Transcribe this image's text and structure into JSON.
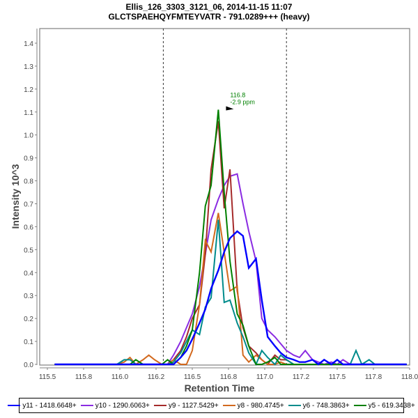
{
  "chart_data": {
    "type": "line",
    "title": "Ellis_126_3303_3121_06, 2014-11-15 11:07",
    "subtitle": "GLCTSPAEHQYFMTEYVATR - 791.0289+++ (heavy)",
    "xlabel": "Retention Time",
    "ylabel": "Intensity 10^3",
    "xlim": [
      115.45,
      118.0
    ],
    "ylim": [
      0,
      1.46
    ],
    "xticks": [
      115.5,
      115.75,
      116.0,
      116.25,
      116.5,
      116.75,
      117.0,
      117.25,
      117.5,
      117.75,
      118.0
    ],
    "xtick_labels": [
      "115.5",
      "115.8",
      "116.0",
      "116.2",
      "116.5",
      "116.8",
      "117.0",
      "117.2",
      "117.5",
      "117.8",
      "118.0"
    ],
    "yticks": [
      0.0,
      0.1,
      0.2,
      0.3,
      0.4,
      0.5,
      0.6,
      0.7,
      0.8,
      0.9,
      1.0,
      1.1,
      1.2,
      1.3,
      1.4
    ],
    "ytick_labels": [
      "0.0",
      "0.1",
      "0.2",
      "0.3",
      "0.4",
      "0.5",
      "0.6",
      "0.7",
      "0.8",
      "0.9",
      "1.0",
      "1.1",
      "1.2",
      "1.3",
      "1.4"
    ],
    "grid": false,
    "legend_position": "bottom",
    "boundaries": [
      116.3,
      117.15
    ],
    "annotation": {
      "x": 116.8,
      "y": 1.11,
      "lines": [
        "116.8",
        "-2.9 ppm"
      ],
      "color": "#008000"
    },
    "x": [
      115.55,
      115.59,
      115.64,
      115.68,
      115.72,
      115.77,
      115.81,
      115.85,
      115.9,
      115.94,
      115.98,
      116.03,
      116.07,
      116.11,
      116.16,
      116.2,
      116.24,
      116.29,
      116.33,
      116.37,
      116.42,
      116.46,
      116.5,
      116.55,
      116.59,
      116.63,
      116.68,
      116.72,
      116.76,
      116.81,
      116.85,
      116.89,
      116.94,
      116.98,
      117.02,
      117.07,
      117.11,
      117.15,
      117.2,
      117.24,
      117.28,
      117.33,
      117.37,
      117.41,
      117.46,
      117.5,
      117.54,
      117.59,
      117.63,
      117.67,
      117.72,
      117.76,
      117.8,
      117.85,
      117.89,
      117.93,
      117.98
    ],
    "series": [
      {
        "name": "y11 - 1418.6648+",
        "color": "#0000ff",
        "values": [
          0,
          0,
          0,
          0,
          0,
          0,
          0,
          0,
          0,
          0,
          0,
          0,
          0,
          0,
          0,
          0,
          0,
          0,
          0.0,
          0.0,
          0.03,
          0.06,
          0.11,
          0.18,
          0.24,
          0.33,
          0.41,
          0.49,
          0.55,
          0.58,
          0.56,
          0.42,
          0.46,
          0.28,
          0.12,
          0.08,
          0.05,
          0.03,
          0.02,
          0.01,
          0.01,
          0.02,
          0.0,
          0.02,
          0.0,
          0.02,
          0.0,
          0.0,
          0.0,
          0.0,
          0,
          0,
          0,
          0,
          0,
          0,
          0
        ]
      },
      {
        "name": "y10 - 1290.6063+",
        "color": "#8a2be2",
        "values": [
          0,
          0,
          0,
          0,
          0,
          0,
          0,
          0,
          0,
          0,
          0,
          0,
          0,
          0,
          0,
          0,
          0,
          0,
          0.0,
          0.04,
          0.1,
          0.16,
          0.22,
          0.34,
          0.48,
          0.63,
          0.72,
          0.78,
          0.82,
          0.83,
          0.7,
          0.58,
          0.45,
          0.2,
          0.15,
          0.12,
          0.09,
          0.06,
          0.04,
          0.03,
          0.06,
          0.02,
          0.01,
          0.0,
          0.01,
          0.0,
          0.02,
          0.0,
          0,
          0,
          0,
          0,
          0,
          0,
          0,
          0,
          0
        ]
      },
      {
        "name": "y9 - 1127.5429+",
        "color": "#a52a2a",
        "values": [
          0,
          0,
          0,
          0,
          0,
          0,
          0,
          0,
          0,
          0,
          0,
          0,
          0,
          0,
          0,
          0,
          0,
          0,
          0.0,
          0.02,
          0.06,
          0.12,
          0.2,
          0.26,
          0.48,
          0.85,
          1.06,
          0.68,
          0.85,
          0.32,
          0.16,
          0.08,
          0.05,
          0.02,
          0.0,
          0.04,
          0.02,
          0.02,
          0.0,
          0.0,
          0.0,
          0.0,
          0,
          0,
          0,
          0,
          0,
          0,
          0,
          0,
          0,
          0,
          0,
          0,
          0,
          0,
          0
        ]
      },
      {
        "name": "y8 - 980.4745+",
        "color": "#d2691e",
        "values": [
          0,
          0,
          0,
          0,
          0,
          0,
          0,
          0,
          0,
          0,
          0,
          0.01,
          0.03,
          0.0,
          0.02,
          0.04,
          0.02,
          0.0,
          0.0,
          0.02,
          0.0,
          0.0,
          0.06,
          0.26,
          0.54,
          0.49,
          0.66,
          0.49,
          0.32,
          0.34,
          0.04,
          0.01,
          0.04,
          0.02,
          0.0,
          0.0,
          0.01,
          0.0,
          0.0,
          0.0,
          0,
          0,
          0,
          0,
          0,
          0,
          0,
          0,
          0,
          0,
          0,
          0,
          0,
          0,
          0,
          0,
          0
        ]
      },
      {
        "name": "y6 - 748.3863+",
        "color": "#008b8b",
        "values": [
          0,
          0,
          0,
          0,
          0,
          0,
          0,
          0,
          0,
          0,
          0,
          0.02,
          0.02,
          0.0,
          0.0,
          0.0,
          0.0,
          0.0,
          0.0,
          0.01,
          0.05,
          0.1,
          0.15,
          0.13,
          0.25,
          0.29,
          0.63,
          0.27,
          0.28,
          0.18,
          0.12,
          0.05,
          0.0,
          0.06,
          0.03,
          0.0,
          0.04,
          0.02,
          0.0,
          0.0,
          0.0,
          0.0,
          0.0,
          0.0,
          0.0,
          0.0,
          0.0,
          0.0,
          0.06,
          0.0,
          0.02,
          0.0,
          0,
          0,
          0,
          0,
          0
        ]
      },
      {
        "name": "y5 - 619.3438+",
        "color": "#008000",
        "values": [
          0,
          0,
          0,
          0,
          0,
          0,
          0,
          0,
          0,
          0,
          0,
          0.0,
          0.0,
          0.02,
          0.0,
          0.0,
          0.0,
          0.0,
          0.02,
          0.0,
          0.03,
          0.08,
          0.15,
          0.4,
          0.69,
          0.78,
          1.11,
          0.75,
          0.45,
          0.22,
          0.17,
          0.08,
          0.0,
          0.0,
          0.01,
          0.03,
          0.0,
          0.0,
          0.0,
          0.0,
          0.0,
          0,
          0,
          0,
          0,
          0,
          0,
          0,
          0,
          0,
          0,
          0,
          0,
          0,
          0,
          0,
          0
        ]
      }
    ]
  }
}
